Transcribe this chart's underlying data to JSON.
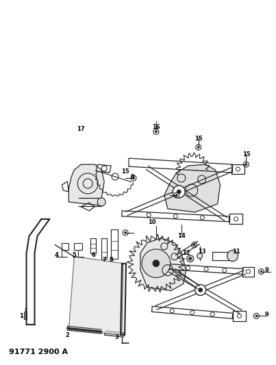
{
  "title": "91771 2900 A",
  "bg": "#ffffff",
  "lc": "#222222",
  "figsize": [
    4.03,
    5.33
  ],
  "dpi": 100
}
